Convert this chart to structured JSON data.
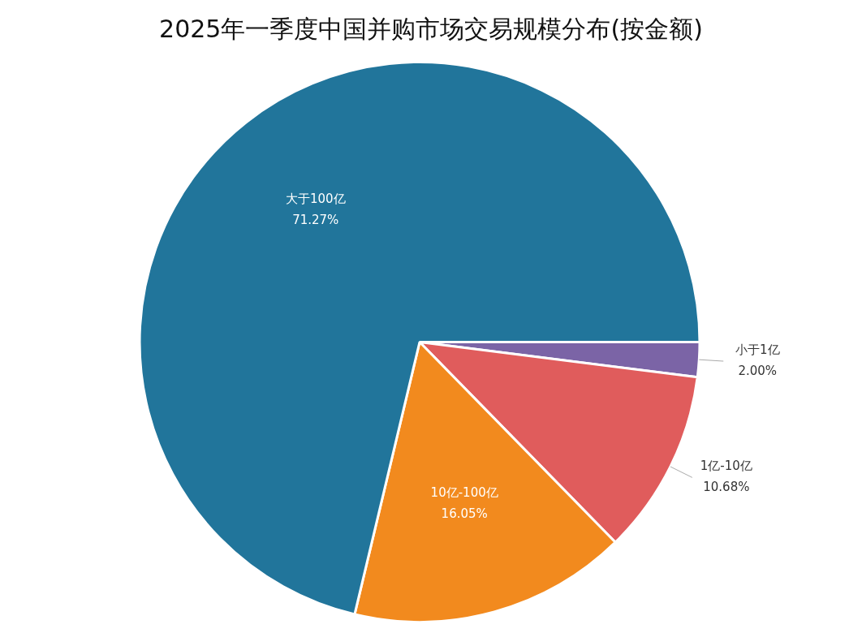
{
  "chart_data": {
    "type": "pie",
    "title": "2025年一季度中国并购市场交易规模分布(按金额)",
    "categories": [
      "小于1亿",
      "1亿-10亿",
      "10亿-100亿",
      "大于100亿"
    ],
    "values": [
      2.0,
      10.68,
      16.05,
      71.27
    ],
    "colors": [
      "#7b64a6",
      "#e05c5c",
      "#f28a1e",
      "#21759b"
    ],
    "value_labels": [
      "2.00%",
      "10.68%",
      "16.05%",
      "71.27%"
    ],
    "legend": false
  }
}
